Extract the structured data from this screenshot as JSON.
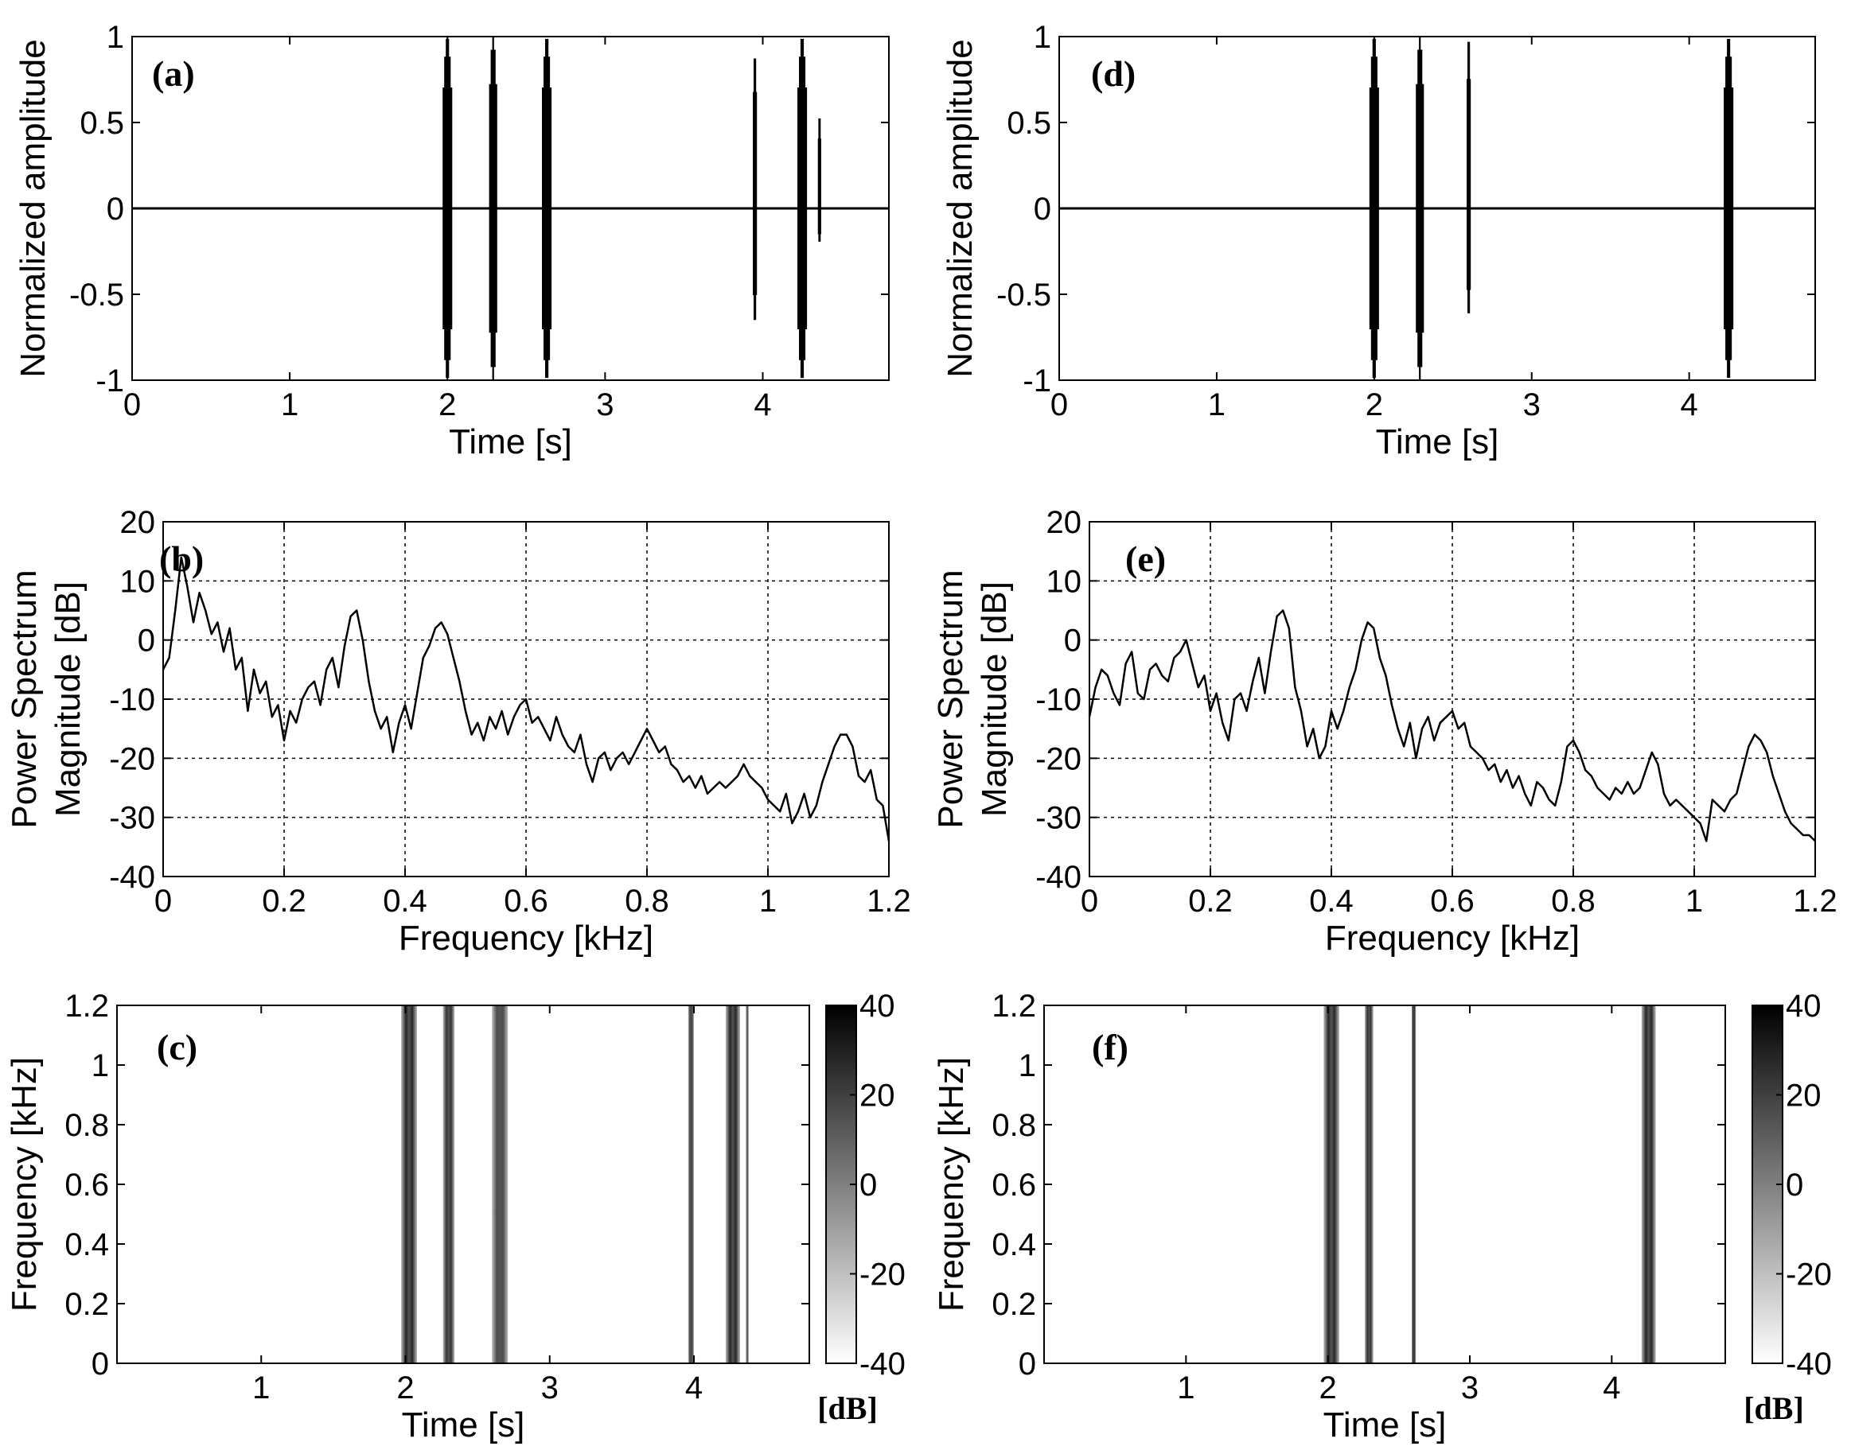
{
  "chart_data": [
    {
      "panel": "(a)",
      "type": "line",
      "xlabel": "Time [s]",
      "ylabel": "Normalized amplitude",
      "xlim": [
        0,
        4.8
      ],
      "ylim": [
        -1,
        1
      ],
      "xticks": [
        "0",
        "1",
        "2",
        "3",
        "4"
      ],
      "yticks": [
        "-1",
        "-0.5",
        "0",
        "0.5",
        "1"
      ],
      "grid": false,
      "events": [
        {
          "t": 2.0,
          "width": 0.05,
          "max": 1.0,
          "min": -1.0
        },
        {
          "t": 2.29,
          "width": 0.04,
          "max": 1.0,
          "min": -1.0
        },
        {
          "t": 2.63,
          "width": 0.05,
          "max": 1.0,
          "min": -1.0
        },
        {
          "t": 3.95,
          "width": 0.015,
          "max": 0.9,
          "min": -0.67
        },
        {
          "t": 4.25,
          "width": 0.05,
          "max": 1.0,
          "min": -1.0
        },
        {
          "t": 4.36,
          "width": 0.01,
          "max": 0.54,
          "min": -0.2
        }
      ]
    },
    {
      "panel": "(d)",
      "type": "line",
      "xlabel": "Time [s]",
      "ylabel": "Normalized amplitude",
      "xlim": [
        0,
        4.8
      ],
      "ylim": [
        -1,
        1
      ],
      "xticks": [
        "0",
        "1",
        "2",
        "3",
        "4"
      ],
      "yticks": [
        "-1",
        "-0.5",
        "0",
        "0.5",
        "1"
      ],
      "grid": false,
      "events": [
        {
          "t": 2.0,
          "width": 0.05,
          "max": 1.0,
          "min": -1.0
        },
        {
          "t": 2.29,
          "width": 0.04,
          "max": 1.0,
          "min": -1.0
        },
        {
          "t": 2.6,
          "width": 0.015,
          "max": 1.0,
          "min": -0.63
        },
        {
          "t": 4.25,
          "width": 0.05,
          "max": 1.0,
          "min": -1.0
        }
      ]
    },
    {
      "panel": "(b)",
      "type": "line",
      "xlabel": "Frequency [kHz]",
      "ylabel": "Power Spectrum Magnitude [dB]",
      "ylabel_lines": [
        "Power Spectrum",
        "Magnitude [dB]"
      ],
      "xlim": [
        0,
        1.2
      ],
      "ylim": [
        -40,
        20
      ],
      "xticks": [
        "0",
        "0.2",
        "0.4",
        "0.6",
        "0.8",
        "1",
        "1.2"
      ],
      "yticks": [
        "-40",
        "-30",
        "-20",
        "-10",
        "0",
        "10",
        "20"
      ],
      "grid": true,
      "series": [
        {
          "x": [
            0.0,
            0.01,
            0.02,
            0.03,
            0.04,
            0.05,
            0.06,
            0.07,
            0.08,
            0.09,
            0.1,
            0.11,
            0.12,
            0.13,
            0.14,
            0.15,
            0.16,
            0.17,
            0.18,
            0.19,
            0.2,
            0.21,
            0.22,
            0.23,
            0.24,
            0.25,
            0.26,
            0.27,
            0.28,
            0.29,
            0.3,
            0.31,
            0.32,
            0.33,
            0.34,
            0.35,
            0.36,
            0.37,
            0.38,
            0.39,
            0.4,
            0.41,
            0.42,
            0.43,
            0.44,
            0.45,
            0.46,
            0.47,
            0.48,
            0.49,
            0.5,
            0.51,
            0.52,
            0.53,
            0.54,
            0.55,
            0.56,
            0.57,
            0.58,
            0.59,
            0.6,
            0.61,
            0.62,
            0.63,
            0.64,
            0.65,
            0.66,
            0.67,
            0.68,
            0.69,
            0.7,
            0.71,
            0.72,
            0.73,
            0.74,
            0.75,
            0.76,
            0.77,
            0.78,
            0.79,
            0.8,
            0.81,
            0.82,
            0.83,
            0.84,
            0.85,
            0.86,
            0.87,
            0.88,
            0.89,
            0.9,
            0.91,
            0.92,
            0.93,
            0.94,
            0.95,
            0.96,
            0.97,
            0.98,
            0.99,
            1.0,
            1.01,
            1.02,
            1.03,
            1.04,
            1.05,
            1.06,
            1.07,
            1.08,
            1.09,
            1.1,
            1.11,
            1.12,
            1.13,
            1.14,
            1.15,
            1.16,
            1.17,
            1.18,
            1.19,
            1.2
          ],
          "y": [
            -5,
            -3,
            5,
            14,
            9,
            3,
            8,
            5,
            1,
            3,
            -2,
            2,
            -5,
            -3,
            -12,
            -5,
            -9,
            -7,
            -13,
            -11,
            -17,
            -12,
            -14,
            -10,
            -8,
            -7,
            -11,
            -5,
            -3,
            -8,
            -1,
            4,
            5,
            0,
            -7,
            -12,
            -15,
            -13,
            -19,
            -14,
            -11,
            -15,
            -9,
            -3,
            -1,
            2,
            3,
            1,
            -3,
            -7,
            -12,
            -16,
            -14,
            -17,
            -13,
            -15,
            -12,
            -16,
            -13,
            -11,
            -10,
            -14,
            -13,
            -15,
            -17,
            -13,
            -16,
            -18,
            -19,
            -16,
            -21,
            -24,
            -20,
            -19,
            -22,
            -20,
            -19,
            -21,
            -19,
            -17,
            -15,
            -17,
            -19,
            -18,
            -21,
            -22,
            -24,
            -23,
            -25,
            -23,
            -26,
            -25,
            -24,
            -25,
            -24,
            -23,
            -21,
            -23,
            -24,
            -25,
            -27,
            -28,
            -29,
            -26,
            -31,
            -29,
            -26,
            -30,
            -28,
            -24,
            -21,
            -18,
            -16,
            -16,
            -18,
            -23,
            -24,
            -22,
            -27,
            -28,
            -34
          ]
        }
      ]
    },
    {
      "panel": "(e)",
      "type": "line",
      "xlabel": "Frequency [kHz]",
      "ylabel": "Power Spectrum Magnitude [dB]",
      "ylabel_lines": [
        "Power Spectrum",
        "Magnitude [dB]"
      ],
      "xlim": [
        0,
        1.2
      ],
      "ylim": [
        -40,
        20
      ],
      "xticks": [
        "0",
        "0.2",
        "0.4",
        "0.6",
        "0.8",
        "1",
        "1.2"
      ],
      "yticks": [
        "-40",
        "-30",
        "-20",
        "-10",
        "0",
        "10",
        "20"
      ],
      "grid": true,
      "series": [
        {
          "x": [
            0.0,
            0.01,
            0.02,
            0.03,
            0.04,
            0.05,
            0.06,
            0.07,
            0.08,
            0.09,
            0.1,
            0.11,
            0.12,
            0.13,
            0.14,
            0.15,
            0.16,
            0.17,
            0.18,
            0.19,
            0.2,
            0.21,
            0.22,
            0.23,
            0.24,
            0.25,
            0.26,
            0.27,
            0.28,
            0.29,
            0.3,
            0.31,
            0.32,
            0.33,
            0.34,
            0.35,
            0.36,
            0.37,
            0.38,
            0.39,
            0.4,
            0.41,
            0.42,
            0.43,
            0.44,
            0.45,
            0.46,
            0.47,
            0.48,
            0.49,
            0.5,
            0.51,
            0.52,
            0.53,
            0.54,
            0.55,
            0.56,
            0.57,
            0.58,
            0.59,
            0.6,
            0.61,
            0.62,
            0.63,
            0.64,
            0.65,
            0.66,
            0.67,
            0.68,
            0.69,
            0.7,
            0.71,
            0.72,
            0.73,
            0.74,
            0.75,
            0.76,
            0.77,
            0.78,
            0.79,
            0.8,
            0.81,
            0.82,
            0.83,
            0.84,
            0.85,
            0.86,
            0.87,
            0.88,
            0.89,
            0.9,
            0.91,
            0.92,
            0.93,
            0.94,
            0.95,
            0.96,
            0.97,
            0.98,
            0.99,
            1.0,
            1.01,
            1.02,
            1.03,
            1.04,
            1.05,
            1.06,
            1.07,
            1.08,
            1.09,
            1.1,
            1.11,
            1.12,
            1.13,
            1.14,
            1.15,
            1.16,
            1.17,
            1.18,
            1.19,
            1.2
          ],
          "y": [
            -13,
            -8,
            -5,
            -6,
            -9,
            -11,
            -4,
            -2,
            -9,
            -10,
            -5,
            -4,
            -6,
            -7,
            -3,
            -2,
            0,
            -4,
            -8,
            -6,
            -12,
            -9,
            -14,
            -17,
            -10,
            -9,
            -12,
            -7,
            -3,
            -9,
            -2,
            4,
            5,
            2,
            -8,
            -12,
            -18,
            -15,
            -20,
            -18,
            -12,
            -15,
            -12,
            -8,
            -5,
            0,
            3,
            2,
            -3,
            -6,
            -11,
            -15,
            -18,
            -14,
            -20,
            -15,
            -13,
            -17,
            -14,
            -13,
            -12,
            -15,
            -14,
            -18,
            -19,
            -20,
            -22,
            -21,
            -24,
            -22,
            -25,
            -23,
            -26,
            -28,
            -24,
            -25,
            -27,
            -28,
            -24,
            -18,
            -17,
            -19,
            -22,
            -23,
            -25,
            -26,
            -27,
            -25,
            -26,
            -24,
            -26,
            -25,
            -22,
            -19,
            -21,
            -26,
            -28,
            -27,
            -28,
            -29,
            -30,
            -31,
            -34,
            -27,
            -28,
            -29,
            -27,
            -26,
            -22,
            -18,
            -16,
            -17,
            -19,
            -23,
            -26,
            -29,
            -31,
            -32,
            -33,
            -33,
            -34
          ]
        }
      ]
    },
    {
      "panel": "(c)",
      "type": "heatmap",
      "xlabel": "Time [s]",
      "ylabel": "Frequency [kHz]",
      "xlim": [
        0,
        4.8
      ],
      "ylim": [
        0,
        1.2
      ],
      "xticks": [
        "1",
        "2",
        "3",
        "4"
      ],
      "yticks": [
        "0",
        "0.2",
        "0.4",
        "0.6",
        "0.8",
        "1",
        "1.2"
      ],
      "colorbar": {
        "ticks": [
          "40",
          "20",
          "0",
          "-20",
          "-40"
        ],
        "range": [
          -40,
          40
        ],
        "unit": "[dB]"
      },
      "bands": [
        {
          "t0": 1.97,
          "t1": 2.08,
          "level": 0.85
        },
        {
          "t0": 2.26,
          "t1": 2.34,
          "level": 0.8
        },
        {
          "t0": 2.6,
          "t1": 2.71,
          "level": 0.7
        },
        {
          "t0": 3.96,
          "t1": 4.0,
          "level": 0.75
        },
        {
          "t0": 4.22,
          "t1": 4.32,
          "level": 0.85
        },
        {
          "t0": 4.36,
          "t1": 4.38,
          "level": 0.6
        }
      ]
    },
    {
      "panel": "(f)",
      "type": "heatmap",
      "xlabel": "Time [s]",
      "ylabel": "Frequency [kHz]",
      "xlim": [
        0,
        4.8
      ],
      "ylim": [
        0,
        1.2
      ],
      "xticks": [
        "1",
        "2",
        "3",
        "4"
      ],
      "yticks": [
        "0",
        "0.2",
        "0.4",
        "0.6",
        "0.8",
        "1",
        "1.2"
      ],
      "colorbar": {
        "ticks": [
          "40",
          "20",
          "0",
          "-20",
          "-40"
        ],
        "range": [
          -40,
          40
        ],
        "unit": "[dB]"
      },
      "bands": [
        {
          "t0": 1.97,
          "t1": 2.08,
          "level": 0.85
        },
        {
          "t0": 2.26,
          "t1": 2.32,
          "level": 0.8
        },
        {
          "t0": 2.59,
          "t1": 2.62,
          "level": 0.85
        },
        {
          "t0": 4.21,
          "t1": 4.31,
          "level": 0.85
        }
      ]
    }
  ]
}
